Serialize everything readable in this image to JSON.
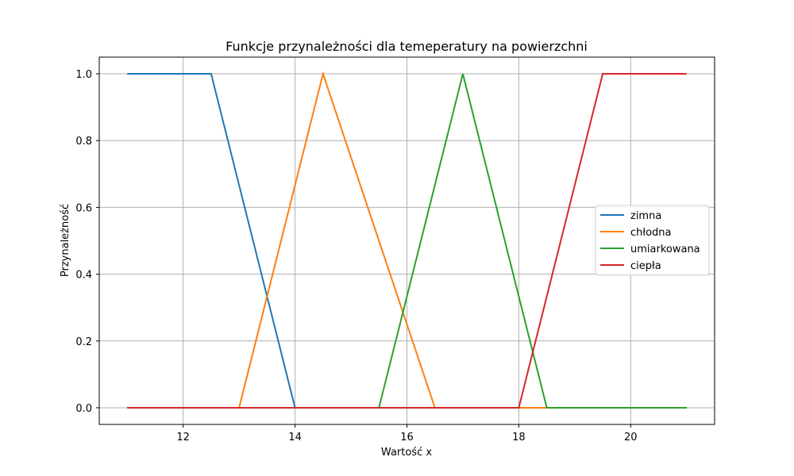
{
  "chart_data": {
    "type": "line",
    "title": "Funkcje przynależności dla temeperatury na powierzchni",
    "xlabel": "Wartość x",
    "ylabel": "Przynależność",
    "xlim": [
      10.5,
      21.5
    ],
    "ylim": [
      -0.05,
      1.05
    ],
    "xticks": [
      12,
      14,
      16,
      18,
      20
    ],
    "yticks": [
      0.0,
      0.2,
      0.4,
      0.6,
      0.8,
      1.0
    ],
    "xtick_labels": [
      "12",
      "14",
      "16",
      "18",
      "20"
    ],
    "ytick_labels": [
      "0.0",
      "0.2",
      "0.4",
      "0.6",
      "0.8",
      "1.0"
    ],
    "grid": true,
    "legend_position": "center-right",
    "series": [
      {
        "name": "zimna",
        "color": "#1f77b4",
        "x": [
          11,
          12.5,
          14,
          21
        ],
        "y": [
          1,
          1,
          0,
          0
        ]
      },
      {
        "name": "chłodna",
        "color": "#ff7f0e",
        "x": [
          11,
          13,
          14.5,
          16.5,
          21
        ],
        "y": [
          0,
          0,
          1,
          0,
          0
        ]
      },
      {
        "name": "umiarkowana",
        "color": "#2ca02c",
        "x": [
          11,
          15.5,
          17,
          18.5,
          21
        ],
        "y": [
          0,
          0,
          1,
          0,
          0
        ]
      },
      {
        "name": "ciepła",
        "color": "#d62728",
        "x": [
          11,
          18,
          19.5,
          21
        ],
        "y": [
          0,
          0,
          1,
          1
        ]
      }
    ]
  }
}
